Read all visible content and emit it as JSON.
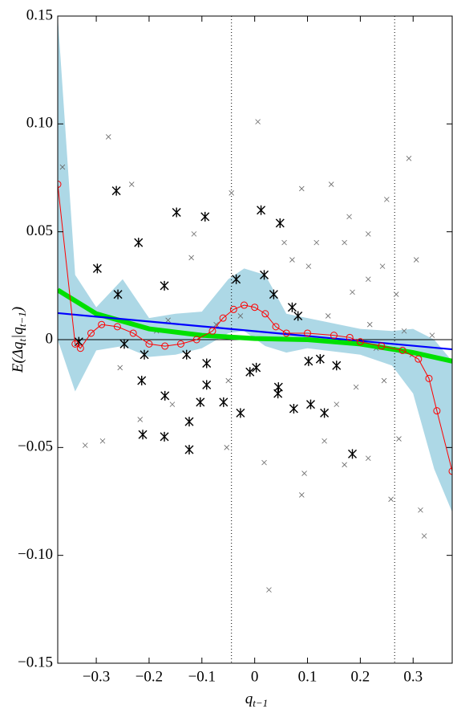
{
  "chart_data": {
    "type": "scatter",
    "xlabel": {
      "base": "q",
      "sub": "t−1"
    },
    "ylabel": [
      "E(Δq",
      "t",
      "|q",
      "t−1",
      ")"
    ],
    "xlim": [
      -0.373,
      0.374
    ],
    "ylim": [
      -0.15,
      0.15
    ],
    "xticks": [
      {
        "value": -0.3,
        "label": "−0.3"
      },
      {
        "value": -0.2,
        "label": "−0.2"
      },
      {
        "value": -0.1,
        "label": "−0.1"
      },
      0,
      0.1,
      0.2,
      0.3
    ],
    "yticks": [
      {
        "value": -0.15,
        "label": "−0.15"
      },
      {
        "value": -0.1,
        "label": "−0.10"
      },
      {
        "value": -0.05,
        "label": "−0.05"
      },
      0,
      {
        "value": 0.05,
        "label": "0.05"
      },
      {
        "value": 0.1,
        "label": "0.10"
      },
      {
        "value": 0.15,
        "label": "0.15"
      }
    ],
    "vlines": [
      -0.044,
      0.265
    ],
    "hline": 0,
    "band": {
      "color": "#add8e6",
      "x": [
        -0.373,
        -0.34,
        -0.3,
        -0.25,
        -0.2,
        -0.15,
        -0.1,
        -0.05,
        -0.02,
        0.02,
        0.06,
        0.1,
        0.2,
        0.26,
        0.3,
        0.34,
        0.374
      ],
      "upper": [
        0.15,
        0.03,
        0.015,
        0.028,
        0.01,
        0.012,
        0.013,
        0.028,
        0.033,
        0.03,
        0.012,
        0.01,
        0.005,
        0.004,
        0.005,
        0.0,
        -0.01
      ],
      "lower": [
        0.0,
        -0.024,
        -0.005,
        -0.003,
        -0.008,
        -0.007,
        -0.004,
        0.003,
        0.004,
        -0.003,
        -0.006,
        -0.004,
        -0.007,
        -0.012,
        -0.025,
        -0.06,
        -0.08
      ]
    },
    "series": [
      {
        "style": "cross",
        "color": "#666666",
        "x": [
          -0.277,
          0.006,
          0.292,
          -0.233,
          -0.044,
          0.089,
          0.145,
          0.25,
          0.179,
          -0.115,
          -0.12,
          0.117,
          0.17,
          0.215,
          0.242,
          0.306,
          -0.364,
          -0.321,
          -0.288,
          -0.217,
          -0.053,
          0.018,
          0.089,
          0.094,
          0.027,
          0.258,
          0.314,
          0.321,
          0.273,
          0.215,
          0.17,
          0.132,
          0.218,
          0.23,
          0.245,
          0.192,
          0.155,
          0.215,
          0.185,
          0.139,
          0.268,
          0.283,
          0.298,
          0.336,
          -0.164,
          -0.186,
          -0.156,
          -0.255,
          0.056,
          0.071,
          0.102,
          -0.027,
          -0.05,
          -0.073
        ],
        "values": [
          0.094,
          0.101,
          0.084,
          0.072,
          0.068,
          0.07,
          0.072,
          0.065,
          0.057,
          0.049,
          0.038,
          0.045,
          0.045,
          0.049,
          0.034,
          0.037,
          0.08,
          -0.049,
          -0.047,
          -0.037,
          -0.05,
          -0.057,
          -0.072,
          -0.062,
          -0.116,
          -0.074,
          -0.079,
          -0.091,
          -0.046,
          -0.055,
          -0.058,
          -0.047,
          0.007,
          -0.004,
          -0.019,
          -0.022,
          -0.03,
          0.028,
          0.022,
          0.011,
          0.021,
          0.004,
          -0.007,
          0.002,
          0.009,
          0.004,
          -0.03,
          -0.013,
          0.045,
          0.037,
          0.034,
          0.011,
          -0.019,
          0.007
        ]
      },
      {
        "style": "star",
        "color": "#000000",
        "x": [
          -0.262,
          -0.148,
          -0.094,
          -0.22,
          -0.298,
          -0.171,
          -0.259,
          -0.333,
          -0.247,
          -0.209,
          -0.129,
          -0.091,
          -0.214,
          -0.091,
          -0.17,
          -0.103,
          -0.212,
          -0.171,
          -0.124,
          -0.124,
          -0.059,
          -0.027,
          -0.035,
          0.012,
          0.048,
          0.018,
          0.036,
          0.071,
          0.082,
          0.003,
          0.045,
          0.044,
          0.074,
          0.106,
          0.132,
          0.102,
          0.155,
          0.185,
          0.124,
          -0.009
        ],
        "values": [
          0.069,
          0.059,
          0.057,
          0.045,
          0.033,
          0.025,
          0.021,
          -0.001,
          -0.002,
          -0.007,
          -0.007,
          -0.011,
          -0.019,
          -0.021,
          -0.026,
          -0.029,
          -0.044,
          -0.045,
          -0.038,
          -0.051,
          -0.029,
          -0.034,
          0.028,
          0.06,
          0.054,
          0.03,
          0.021,
          0.015,
          0.011,
          -0.013,
          -0.022,
          -0.025,
          -0.032,
          -0.03,
          -0.034,
          -0.01,
          -0.012,
          -0.053,
          -0.009,
          -0.015
        ]
      },
      {
        "style": "thick-line",
        "color": "#00e000",
        "x": [
          -0.373,
          -0.3,
          -0.2,
          -0.1,
          0,
          0.1,
          0.2,
          0.3,
          0.374
        ],
        "values": [
          0.023,
          0.012,
          0.005,
          0.002,
          0.0005,
          0,
          -0.002,
          -0.006,
          -0.01
        ]
      },
      {
        "style": "line",
        "color": "#0000ff",
        "x": [
          -0.373,
          0.374
        ],
        "values": [
          0.0123,
          -0.0045
        ]
      },
      {
        "style": "circle-line",
        "color": "#ff0000",
        "x": [
          -0.373,
          -0.34,
          -0.33,
          -0.31,
          -0.29,
          -0.26,
          -0.23,
          -0.2,
          -0.17,
          -0.14,
          -0.11,
          -0.08,
          -0.06,
          -0.04,
          -0.02,
          0,
          0.02,
          0.04,
          0.06,
          0.1,
          0.15,
          0.18,
          0.2,
          0.24,
          0.28,
          0.31,
          0.33,
          0.345,
          0.374
        ],
        "values": [
          0.072,
          -0.002,
          -0.004,
          0.003,
          0.007,
          0.006,
          0.003,
          -0.002,
          -0.003,
          -0.002,
          0,
          0.004,
          0.01,
          0.014,
          0.016,
          0.015,
          0.012,
          0.006,
          0.003,
          0.003,
          0.002,
          0.001,
          -0.001,
          -0.003,
          -0.005,
          -0.009,
          -0.018,
          -0.033,
          -0.061
        ]
      }
    ]
  }
}
